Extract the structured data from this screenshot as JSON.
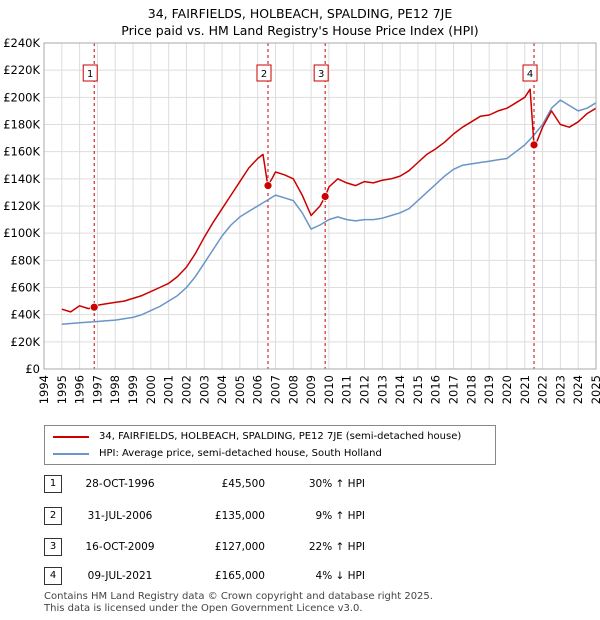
{
  "title_line1": "34, FAIRFIELDS, HOLBEACH, SPALDING, PE12 7JE",
  "title_line2": "Price paid vs. HM Land Registry's House Price Index (HPI)",
  "colors": {
    "red": "#cc0000",
    "blue": "#6a95c8",
    "grid": "#dddddd",
    "marker_line": "#cc0000"
  },
  "chart_data": {
    "type": "line",
    "xlim": [
      1994,
      2025
    ],
    "ylim": [
      0,
      240000
    ],
    "x_ticks": [
      "1994",
      "1995",
      "1996",
      "1997",
      "1998",
      "1999",
      "2000",
      "2001",
      "2002",
      "2003",
      "2004",
      "2005",
      "2006",
      "2007",
      "2008",
      "2009",
      "2010",
      "2011",
      "2012",
      "2013",
      "2014",
      "2015",
      "2016",
      "2017",
      "2018",
      "2019",
      "2020",
      "2021",
      "2022",
      "2023",
      "2024",
      "2025"
    ],
    "y_ticks": [
      "£0",
      "£20K",
      "£40K",
      "£60K",
      "£80K",
      "£100K",
      "£120K",
      "£140K",
      "£160K",
      "£180K",
      "£200K",
      "£220K",
      "£240K"
    ],
    "series": [
      {
        "name": "34, FAIRFIELDS, HOLBEACH, SPALDING, PE12 7JE (semi-detached house)",
        "color": "#cc0000",
        "x": [
          1995.0,
          1995.5,
          1996.0,
          1996.5,
          1996.82,
          1997.0,
          1997.5,
          1998.0,
          1998.5,
          1999.0,
          1999.5,
          2000.0,
          2000.5,
          2001.0,
          2001.5,
          2002.0,
          2002.5,
          2003.0,
          2003.5,
          2004.0,
          2004.5,
          2005.0,
          2005.5,
          2006.0,
          2006.3,
          2006.57,
          2006.8,
          2007.0,
          2007.5,
          2008.0,
          2008.5,
          2009.0,
          2009.5,
          2009.79,
          2010.0,
          2010.5,
          2011.0,
          2011.5,
          2012.0,
          2012.5,
          2013.0,
          2013.5,
          2014.0,
          2014.5,
          2015.0,
          2015.5,
          2016.0,
          2016.5,
          2017.0,
          2017.5,
          2018.0,
          2018.5,
          2019.0,
          2019.5,
          2020.0,
          2020.5,
          2021.0,
          2021.3,
          2021.52,
          2021.7,
          2022.0,
          2022.5,
          2023.0,
          2023.5,
          2024.0,
          2024.5,
          2025.0
        ],
        "values": [
          44000,
          42000,
          46500,
          44500,
          45500,
          47000,
          48000,
          49000,
          50000,
          52000,
          54000,
          57000,
          60000,
          63000,
          68000,
          75000,
          85000,
          97000,
          108000,
          118000,
          128000,
          138000,
          148000,
          155000,
          158000,
          135000,
          140000,
          145000,
          143000,
          140000,
          128000,
          113000,
          120000,
          127000,
          134000,
          140000,
          137000,
          135000,
          138000,
          137000,
          139000,
          140000,
          142000,
          146000,
          152000,
          158000,
          162000,
          167000,
          173000,
          178000,
          182000,
          186000,
          187000,
          190000,
          192000,
          196000,
          200000,
          206000,
          165000,
          168000,
          178000,
          190000,
          180000,
          178000,
          182000,
          188000,
          192000
        ]
      },
      {
        "name": "HPI: Average price, semi-detached house, South Holland",
        "color": "#6a95c8",
        "x": [
          1995.0,
          1995.5,
          1996.0,
          1996.5,
          1997.0,
          1997.5,
          1998.0,
          1998.5,
          1999.0,
          1999.5,
          2000.0,
          2000.5,
          2001.0,
          2001.5,
          2002.0,
          2002.5,
          2003.0,
          2003.5,
          2004.0,
          2004.5,
          2005.0,
          2005.5,
          2006.0,
          2006.5,
          2007.0,
          2007.5,
          2008.0,
          2008.5,
          2009.0,
          2009.5,
          2010.0,
          2010.5,
          2011.0,
          2011.5,
          2012.0,
          2012.5,
          2013.0,
          2013.5,
          2014.0,
          2014.5,
          2015.0,
          2015.5,
          2016.0,
          2016.5,
          2017.0,
          2017.5,
          2018.0,
          2018.5,
          2019.0,
          2019.5,
          2020.0,
          2020.5,
          2021.0,
          2021.5,
          2022.0,
          2022.5,
          2023.0,
          2023.5,
          2024.0,
          2024.5,
          2025.0
        ],
        "values": [
          33000,
          33500,
          34000,
          34500,
          35000,
          35500,
          36000,
          37000,
          38000,
          40000,
          43000,
          46000,
          50000,
          54000,
          60000,
          68000,
          78000,
          88000,
          98000,
          106000,
          112000,
          116000,
          120000,
          124000,
          128000,
          126000,
          124000,
          115000,
          103000,
          106000,
          110000,
          112000,
          110000,
          109000,
          110000,
          110000,
          111000,
          113000,
          115000,
          118000,
          124000,
          130000,
          136000,
          142000,
          147000,
          150000,
          151000,
          152000,
          153000,
          154000,
          155000,
          160000,
          165000,
          172000,
          180000,
          192000,
          198000,
          194000,
          190000,
          192000,
          196000
        ]
      }
    ],
    "sales": [
      {
        "label": "1",
        "x": 1996.82,
        "value": 45500
      },
      {
        "label": "2",
        "x": 2006.58,
        "value": 135000
      },
      {
        "label": "3",
        "x": 2009.79,
        "value": 127000
      },
      {
        "label": "4",
        "x": 2021.52,
        "value": 165000
      }
    ]
  },
  "legend": {
    "red_label": "34, FAIRFIELDS, HOLBEACH, SPALDING, PE12 7JE (semi-detached house)",
    "blue_label": "HPI: Average price, semi-detached house, South Holland"
  },
  "transactions": [
    {
      "num": "1",
      "date": "28-OCT-1996",
      "price": "£45,500",
      "pct": "30% ↑ HPI"
    },
    {
      "num": "2",
      "date": "31-JUL-2006",
      "price": "£135,000",
      "pct": "9% ↑ HPI"
    },
    {
      "num": "3",
      "date": "16-OCT-2009",
      "price": "£127,000",
      "pct": "22% ↑ HPI"
    },
    {
      "num": "4",
      "date": "09-JUL-2021",
      "price": "£165,000",
      "pct": "4% ↓ HPI"
    }
  ],
  "footer_line1": "Contains HM Land Registry data © Crown copyright and database right 2025.",
  "footer_line2": "This data is licensed under the Open Government Licence v3.0."
}
